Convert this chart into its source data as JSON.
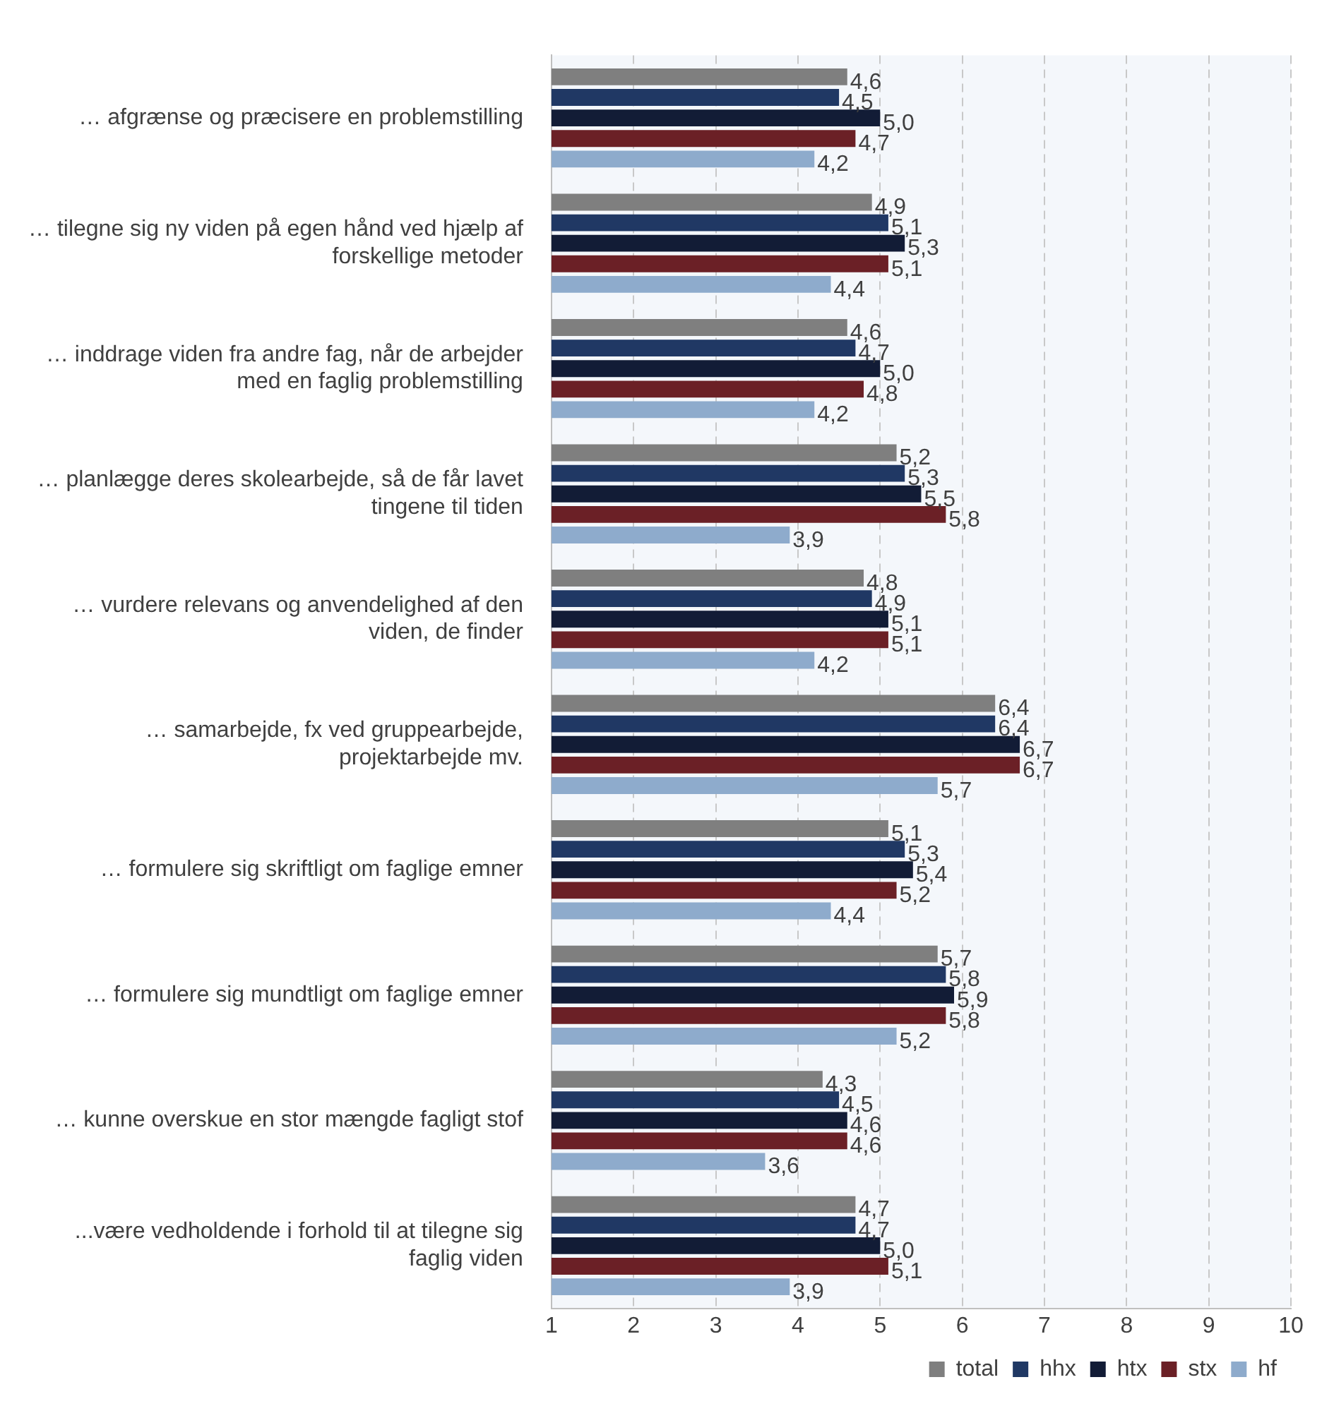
{
  "chart_data": {
    "type": "bar",
    "orientation": "horizontal",
    "categories": [
      "… afgrænse og præcisere en problemstilling",
      "… tilegne sig ny viden på egen hånd ved hjælp af forskellige metoder",
      "… inddrage viden fra andre fag, når de arbejder med en faglig problemstilling",
      "… planlægge deres skolearbejde, så de får lavet tingene til tiden",
      "… vurdere relevans og anvendelighed af den viden, de finder",
      "… samarbejde, fx ved gruppearbejde, projektarbejde mv.",
      "… formulere sig skriftligt om faglige emner",
      "… formulere sig mundtligt om faglige emner",
      "… kunne overskue en stor mængde fagligt stof",
      "...være vedholdende i forhold til at tilegne sig faglig viden"
    ],
    "series": [
      {
        "name": "total",
        "color": "#7f7f7f",
        "values": [
          4.6,
          4.9,
          4.6,
          5.2,
          4.8,
          6.4,
          5.1,
          5.7,
          4.3,
          4.7
        ],
        "value_labels": [
          "4,6",
          "4,9",
          "4,6",
          "5,2",
          "4,8",
          "6,4",
          "5,1",
          "5,7",
          "4,3",
          "4,7"
        ]
      },
      {
        "name": "hhx",
        "color": "#203864",
        "values": [
          4.5,
          5.1,
          4.7,
          5.3,
          4.9,
          6.4,
          5.3,
          5.8,
          4.5,
          4.7
        ],
        "value_labels": [
          "4,5",
          "5,1",
          "4,7",
          "5,3",
          "4,9",
          "6,4",
          "5,3",
          "5,8",
          "4,5",
          "4,7"
        ]
      },
      {
        "name": "htx",
        "color": "#121c36",
        "values": [
          5.0,
          5.3,
          5.0,
          5.5,
          5.1,
          6.7,
          5.4,
          5.9,
          4.6,
          5.0
        ],
        "value_labels": [
          "5,0",
          "5,3",
          "5,0",
          "5,5",
          "5,1",
          "6,7",
          "5,4",
          "5,9",
          "4,6",
          "5,0"
        ]
      },
      {
        "name": "stx",
        "color": "#6b2026",
        "values": [
          4.7,
          5.1,
          4.8,
          5.8,
          5.1,
          6.7,
          5.2,
          5.8,
          4.6,
          5.1
        ],
        "value_labels": [
          "4,7",
          "5,1",
          "4,8",
          "5,8",
          "5,1",
          "6,7",
          "5,2",
          "5,8",
          "4,6",
          "5,1"
        ]
      },
      {
        "name": "hf",
        "color": "#8eabcc",
        "values": [
          4.2,
          4.4,
          4.2,
          3.9,
          4.2,
          5.7,
          4.4,
          5.2,
          3.6,
          3.9
        ],
        "value_labels": [
          "4,2",
          "4,4",
          "4,2",
          "3,9",
          "4,2",
          "5,7",
          "4,4",
          "5,2",
          "3,6",
          "3,9"
        ]
      }
    ],
    "xlim": [
      1,
      10
    ],
    "xticks": [
      1,
      2,
      3,
      4,
      5,
      6,
      7,
      8,
      9,
      10
    ],
    "grid": "x",
    "legend": "bottom right"
  }
}
